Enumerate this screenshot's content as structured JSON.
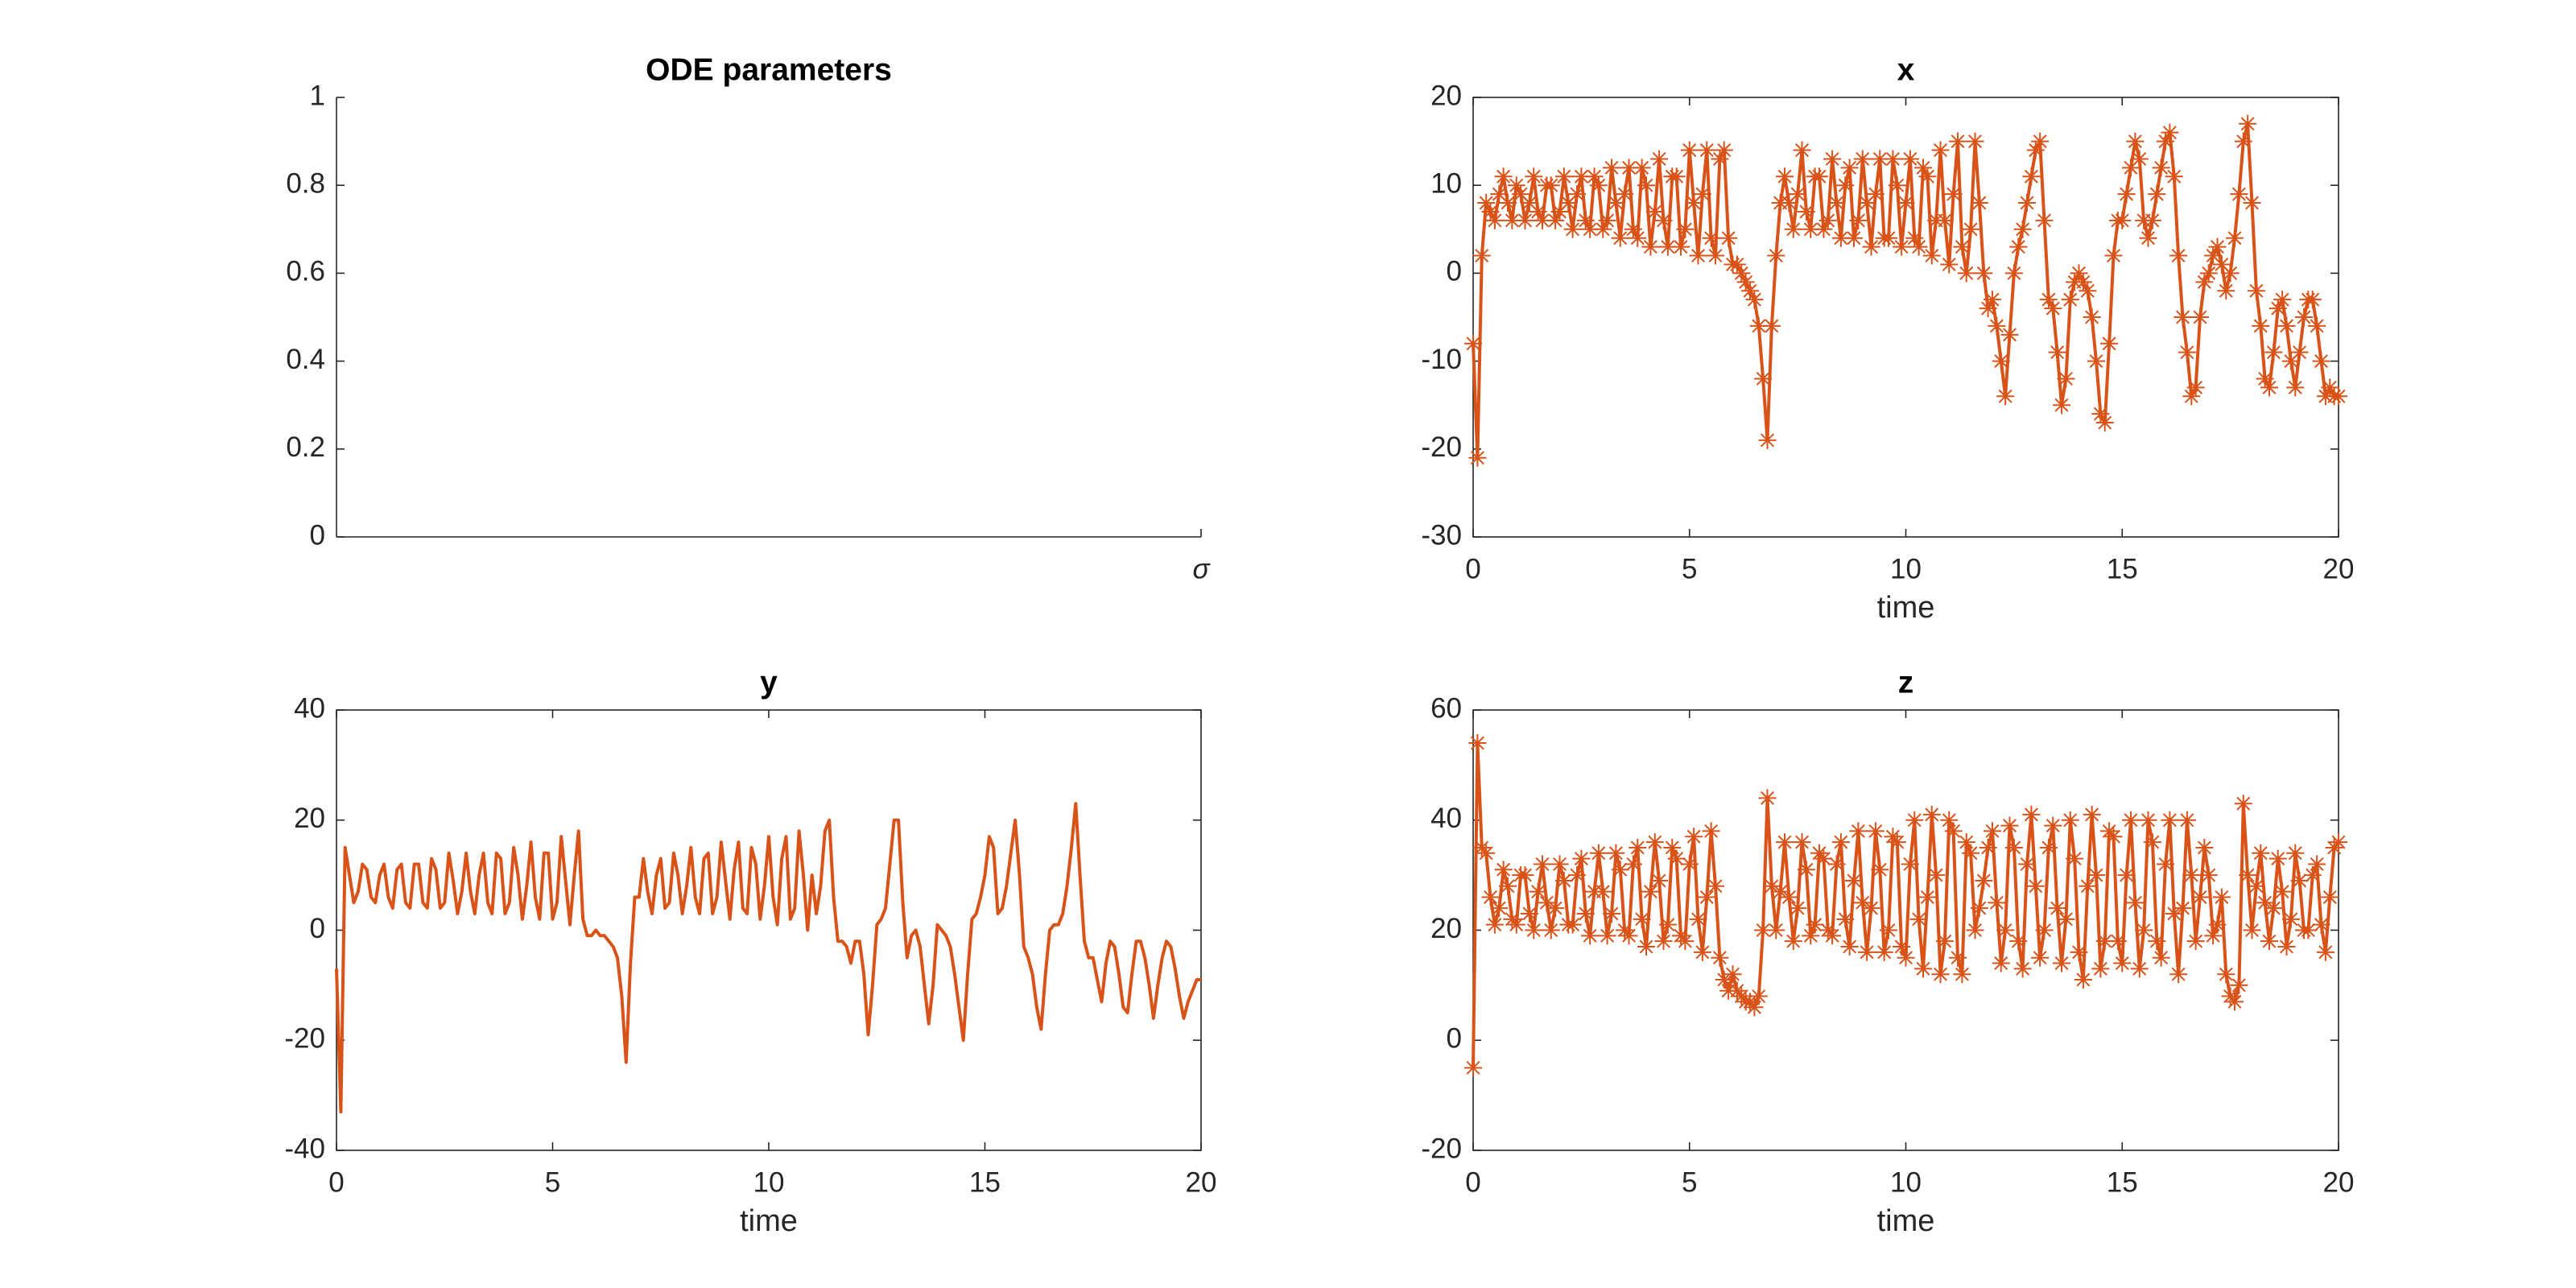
{
  "chart_data": [
    {
      "type": "line",
      "title": "ODE parameters",
      "xlim": [
        0,
        1
      ],
      "xticks": [
        {
          "value": 1,
          "label": "σ"
        }
      ],
      "ylim": [
        0,
        1
      ],
      "yticks": [
        0,
        0.2,
        0.4,
        0.6,
        0.8,
        1
      ],
      "box": false,
      "series": []
    },
    {
      "type": "line",
      "title": "x",
      "xlabel": "time",
      "xlim": [
        0,
        20
      ],
      "xticks": [
        0,
        5,
        10,
        15,
        20
      ],
      "ylim": [
        -30,
        20
      ],
      "yticks": [
        -30,
        -20,
        -10,
        0,
        10,
        20
      ],
      "box": true,
      "marker": "*",
      "x": [
        0,
        0.1,
        0.2,
        0.3,
        0.4,
        0.5,
        0.6,
        0.7,
        0.8,
        0.9,
        1,
        1.1,
        1.2,
        1.3,
        1.4,
        1.5,
        1.6,
        1.7,
        1.8,
        1.9,
        2,
        2.1,
        2.2,
        2.3,
        2.4,
        2.5,
        2.6,
        2.7,
        2.8,
        2.9,
        3,
        3.1,
        3.2,
        3.3,
        3.4,
        3.5,
        3.6,
        3.7,
        3.8,
        3.9,
        4,
        4.1,
        4.2,
        4.3,
        4.4,
        4.5,
        4.6,
        4.7,
        4.8,
        4.9,
        5,
        5.1,
        5.2,
        5.3,
        5.4,
        5.5,
        5.6,
        5.7,
        5.8,
        5.9,
        6,
        6.1,
        6.2,
        6.3,
        6.4,
        6.5,
        6.6,
        6.7,
        6.8,
        6.9,
        7,
        7.1,
        7.2,
        7.3,
        7.4,
        7.5,
        7.6,
        7.7,
        7.8,
        7.9,
        8,
        8.1,
        8.2,
        8.3,
        8.4,
        8.5,
        8.6,
        8.7,
        8.8,
        8.9,
        9,
        9.1,
        9.2,
        9.3,
        9.4,
        9.5,
        9.6,
        9.7,
        9.8,
        9.9,
        10,
        10.1,
        10.2,
        10.3,
        10.4,
        10.5,
        10.6,
        10.7,
        10.8,
        10.9,
        11,
        11.1,
        11.2,
        11.3,
        11.4,
        11.5,
        11.6,
        11.7,
        11.8,
        11.9,
        12,
        12.1,
        12.2,
        12.3,
        12.4,
        12.5,
        12.6,
        12.7,
        12.8,
        12.9,
        13,
        13.1,
        13.2,
        13.3,
        13.4,
        13.5,
        13.6,
        13.7,
        13.8,
        13.9,
        14,
        14.1,
        14.2,
        14.3,
        14.4,
        14.5,
        14.6,
        14.7,
        14.8,
        14.9,
        15,
        15.1,
        15.2,
        15.3,
        15.4,
        15.5,
        15.6,
        15.7,
        15.8,
        15.9,
        16,
        16.1,
        16.2,
        16.3,
        16.4,
        16.5,
        16.6,
        16.7,
        16.8,
        16.9,
        17,
        17.1,
        17.2,
        17.3,
        17.4,
        17.5,
        17.6,
        17.7,
        17.8,
        17.9,
        18,
        18.1,
        18.2,
        18.3,
        18.4,
        18.5,
        18.6,
        18.7,
        18.8,
        18.9,
        19,
        19.1,
        19.2,
        19.3,
        19.4,
        19.5,
        19.6,
        19.7,
        19.8,
        19.9,
        20
      ],
      "series": [
        {
          "color": "#d95319",
          "values": [
            -8,
            -21,
            2,
            8,
            7,
            6,
            9,
            11,
            8,
            6,
            10,
            9,
            6,
            8,
            11,
            7,
            6,
            10,
            10,
            6,
            7,
            11,
            8,
            5,
            9,
            11,
            6,
            5,
            11,
            10,
            5,
            6,
            12,
            8,
            4,
            9,
            12,
            5,
            4,
            12,
            10,
            3,
            7,
            13,
            6,
            3,
            11,
            11,
            3,
            5,
            14,
            8,
            2,
            9,
            14,
            4,
            2,
            13,
            14,
            4,
            1,
            1,
            0,
            -1,
            -2,
            -3,
            -6,
            -12,
            -19,
            -6,
            2,
            8,
            11,
            8,
            5,
            9,
            14,
            7,
            5,
            11,
            11,
            5,
            6,
            13,
            8,
            4,
            10,
            12,
            4,
            6,
            13,
            8,
            3,
            9,
            13,
            4,
            4,
            13,
            10,
            3,
            8,
            13,
            4,
            3,
            12,
            11,
            2,
            6,
            14,
            6,
            1,
            9,
            15,
            3,
            0,
            5,
            15,
            8,
            0,
            -4,
            -3,
            -6,
            -10,
            -14,
            -7,
            0,
            3,
            5,
            8,
            11,
            14,
            15,
            6,
            -3,
            -4,
            -9,
            -15,
            -12,
            -3,
            -1,
            0,
            -1,
            -2,
            -5,
            -10,
            -16,
            -17,
            -8,
            2,
            6,
            6,
            9,
            12,
            15,
            13,
            6,
            4,
            6,
            9,
            12,
            15,
            16,
            11,
            2,
            -5,
            -9,
            -14,
            -13,
            -5,
            -1,
            0,
            2,
            3,
            1,
            -2,
            0,
            4,
            9,
            15,
            17,
            8,
            -2,
            -6,
            -12,
            -13,
            -9,
            -4,
            -3,
            -6,
            -10,
            -13,
            -9,
            -5,
            -3,
            -3,
            -6,
            -10,
            -14,
            -13,
            -14,
            -14
          ]
        }
      ]
    },
    {
      "type": "line",
      "title": "y",
      "xlabel": "time",
      "xlim": [
        0,
        20
      ],
      "xticks": [
        0,
        5,
        10,
        15,
        20
      ],
      "ylim": [
        -40,
        40
      ],
      "yticks": [
        -40,
        -20,
        0,
        20,
        40
      ],
      "box": true,
      "x": [
        0,
        0.1,
        0.2,
        0.3,
        0.4,
        0.5,
        0.6,
        0.7,
        0.8,
        0.9,
        1,
        1.1,
        1.2,
        1.3,
        1.4,
        1.5,
        1.6,
        1.7,
        1.8,
        1.9,
        2,
        2.1,
        2.2,
        2.3,
        2.4,
        2.5,
        2.6,
        2.7,
        2.8,
        2.9,
        3,
        3.1,
        3.2,
        3.3,
        3.4,
        3.5,
        3.6,
        3.7,
        3.8,
        3.9,
        4,
        4.1,
        4.2,
        4.3,
        4.4,
        4.5,
        4.6,
        4.7,
        4.8,
        4.9,
        5,
        5.1,
        5.2,
        5.3,
        5.4,
        5.5,
        5.6,
        5.7,
        5.8,
        5.9,
        6,
        6.1,
        6.2,
        6.3,
        6.4,
        6.5,
        6.6,
        6.7,
        6.8,
        6.9,
        7,
        7.1,
        7.2,
        7.3,
        7.4,
        7.5,
        7.6,
        7.7,
        7.8,
        7.9,
        8,
        8.1,
        8.2,
        8.3,
        8.4,
        8.5,
        8.6,
        8.7,
        8.8,
        8.9,
        9,
        9.1,
        9.2,
        9.3,
        9.4,
        9.5,
        9.6,
        9.7,
        9.8,
        9.9,
        10,
        10.1,
        10.2,
        10.3,
        10.4,
        10.5,
        10.6,
        10.7,
        10.8,
        10.9,
        11,
        11.1,
        11.2,
        11.3,
        11.4,
        11.5,
        11.6,
        11.7,
        11.8,
        11.9,
        12,
        12.1,
        12.2,
        12.3,
        12.4,
        12.5,
        12.6,
        12.7,
        12.8,
        12.9,
        13,
        13.1,
        13.2,
        13.3,
        13.4,
        13.5,
        13.6,
        13.7,
        13.8,
        13.9,
        14,
        14.1,
        14.2,
        14.3,
        14.4,
        14.5,
        14.6,
        14.7,
        14.8,
        14.9,
        15,
        15.1,
        15.2,
        15.3,
        15.4,
        15.5,
        15.6,
        15.7,
        15.8,
        15.9,
        16,
        16.1,
        16.2,
        16.3,
        16.4,
        16.5,
        16.6,
        16.7,
        16.8,
        16.9,
        17,
        17.1,
        17.2,
        17.3,
        17.4,
        17.5,
        17.6,
        17.7,
        17.8,
        17.9,
        18,
        18.1,
        18.2,
        18.3,
        18.4,
        18.5,
        18.6,
        18.7,
        18.8,
        18.9,
        19,
        19.1,
        19.2,
        19.3,
        19.4,
        19.5,
        19.6,
        19.7,
        19.8,
        19.9,
        20
      ],
      "series": [
        {
          "color": "#d95319",
          "values": [
            -7,
            -33,
            15,
            10,
            5,
            7,
            12,
            11,
            6,
            5,
            10,
            12,
            6,
            4,
            11,
            12,
            5,
            4,
            12,
            12,
            5,
            4,
            13,
            11,
            4,
            5,
            14,
            9,
            3,
            7,
            14,
            7,
            3,
            10,
            14,
            5,
            3,
            14,
            13,
            3,
            5,
            15,
            10,
            2,
            8,
            16,
            6,
            2,
            14,
            14,
            2,
            5,
            17,
            9,
            1,
            10,
            18,
            2,
            -1,
            -1,
            0,
            -1,
            -1,
            -2,
            -3,
            -5,
            -12,
            -24,
            -6,
            6,
            6,
            13,
            7,
            3,
            10,
            13,
            4,
            5,
            14,
            10,
            3,
            8,
            15,
            6,
            3,
            13,
            14,
            3,
            6,
            16,
            9,
            2,
            11,
            16,
            4,
            3,
            15,
            12,
            2,
            8,
            17,
            6,
            1,
            13,
            17,
            2,
            4,
            18,
            10,
            0,
            10,
            3,
            8,
            18,
            20,
            6,
            -2,
            -2,
            -3,
            -6,
            -2,
            -2,
            -8,
            -19,
            -10,
            1,
            2,
            4,
            12,
            20,
            20,
            5,
            -5,
            -1,
            0,
            -3,
            -10,
            -17,
            -10,
            1,
            0,
            -1,
            -3,
            -8,
            -14,
            -20,
            -8,
            2,
            3,
            6,
            10,
            17,
            15,
            3,
            4,
            8,
            14,
            20,
            10,
            -3,
            -5,
            -8,
            -14,
            -18,
            -8,
            0,
            1,
            1,
            3,
            8,
            15,
            23,
            10,
            -2,
            -5,
            -5,
            -9,
            -13,
            -6,
            -2,
            -3,
            -8,
            -14,
            -15,
            -8,
            -2,
            -2,
            -5,
            -10,
            -16,
            -10,
            -5,
            -2,
            -3,
            -7,
            -12,
            -16,
            -13,
            -11,
            -9,
            -9
          ]
        }
      ]
    },
    {
      "type": "line",
      "title": "z",
      "xlabel": "time",
      "xlim": [
        0,
        20
      ],
      "xticks": [
        0,
        5,
        10,
        15,
        20
      ],
      "ylim": [
        -20,
        60
      ],
      "yticks": [
        -20,
        0,
        20,
        40,
        60
      ],
      "box": true,
      "marker": "*",
      "x": [
        0,
        0.1,
        0.2,
        0.3,
        0.4,
        0.5,
        0.6,
        0.7,
        0.8,
        0.9,
        1,
        1.1,
        1.2,
        1.3,
        1.4,
        1.5,
        1.6,
        1.7,
        1.8,
        1.9,
        2,
        2.1,
        2.2,
        2.3,
        2.4,
        2.5,
        2.6,
        2.7,
        2.8,
        2.9,
        3,
        3.1,
        3.2,
        3.3,
        3.4,
        3.5,
        3.6,
        3.7,
        3.8,
        3.9,
        4,
        4.1,
        4.2,
        4.3,
        4.4,
        4.5,
        4.6,
        4.7,
        4.8,
        4.9,
        5,
        5.1,
        5.2,
        5.3,
        5.4,
        5.5,
        5.6,
        5.7,
        5.8,
        5.9,
        6,
        6.1,
        6.2,
        6.3,
        6.4,
        6.5,
        6.6,
        6.7,
        6.8,
        6.9,
        7,
        7.1,
        7.2,
        7.3,
        7.4,
        7.5,
        7.6,
        7.7,
        7.8,
        7.9,
        8,
        8.1,
        8.2,
        8.3,
        8.4,
        8.5,
        8.6,
        8.7,
        8.8,
        8.9,
        9,
        9.1,
        9.2,
        9.3,
        9.4,
        9.5,
        9.6,
        9.7,
        9.8,
        9.9,
        10,
        10.1,
        10.2,
        10.3,
        10.4,
        10.5,
        10.6,
        10.7,
        10.8,
        10.9,
        11,
        11.1,
        11.2,
        11.3,
        11.4,
        11.5,
        11.6,
        11.7,
        11.8,
        11.9,
        12,
        12.1,
        12.2,
        12.3,
        12.4,
        12.5,
        12.6,
        12.7,
        12.8,
        12.9,
        13,
        13.1,
        13.2,
        13.3,
        13.4,
        13.5,
        13.6,
        13.7,
        13.8,
        13.9,
        14,
        14.1,
        14.2,
        14.3,
        14.4,
        14.5,
        14.6,
        14.7,
        14.8,
        14.9,
        15,
        15.1,
        15.2,
        15.3,
        15.4,
        15.5,
        15.6,
        15.7,
        15.8,
        15.9,
        16,
        16.1,
        16.2,
        16.3,
        16.4,
        16.5,
        16.6,
        16.7,
        16.8,
        16.9,
        17,
        17.1,
        17.2,
        17.3,
        17.4,
        17.5,
        17.6,
        17.7,
        17.8,
        17.9,
        18,
        18.1,
        18.2,
        18.3,
        18.4,
        18.5,
        18.6,
        18.7,
        18.8,
        18.9,
        19,
        19.1,
        19.2,
        19.3,
        19.4,
        19.5,
        19.6,
        19.7,
        19.8,
        19.9,
        20
      ],
      "series": [
        {
          "color": "#d95319",
          "values": [
            -5,
            54,
            35,
            34,
            26,
            21,
            24,
            31,
            28,
            22,
            21,
            30,
            30,
            23,
            20,
            27,
            32,
            25,
            20,
            24,
            32,
            29,
            21,
            21,
            30,
            33,
            23,
            19,
            27,
            34,
            27,
            19,
            23,
            34,
            31,
            20,
            19,
            32,
            35,
            22,
            17,
            27,
            36,
            29,
            18,
            21,
            35,
            33,
            19,
            18,
            32,
            37,
            22,
            16,
            26,
            38,
            28,
            15,
            11,
            9,
            12,
            9,
            8,
            7,
            7,
            6,
            8,
            20,
            44,
            28,
            20,
            27,
            36,
            26,
            18,
            24,
            36,
            31,
            19,
            21,
            34,
            33,
            20,
            19,
            32,
            36,
            22,
            17,
            29,
            38,
            25,
            16,
            24,
            38,
            31,
            16,
            20,
            37,
            36,
            17,
            15,
            32,
            40,
            22,
            13,
            26,
            41,
            30,
            12,
            18,
            40,
            38,
            15,
            12,
            36,
            34,
            20,
            24,
            29,
            35,
            38,
            25,
            14,
            20,
            39,
            35,
            18,
            13,
            32,
            41,
            28,
            15,
            20,
            35,
            39,
            24,
            14,
            22,
            40,
            33,
            16,
            11,
            28,
            41,
            30,
            13,
            18,
            38,
            37,
            18,
            14,
            30,
            40,
            25,
            13,
            20,
            40,
            36,
            18,
            15,
            32,
            40,
            23,
            12,
            24,
            40,
            30,
            18,
            26,
            35,
            30,
            19,
            21,
            26,
            12,
            8,
            7,
            10,
            43,
            30,
            20,
            28,
            34,
            25,
            18,
            24,
            33,
            27,
            17,
            22,
            34,
            29,
            20,
            20,
            30,
            32,
            21,
            16,
            26,
            35,
            36
          ]
        }
      ]
    }
  ]
}
